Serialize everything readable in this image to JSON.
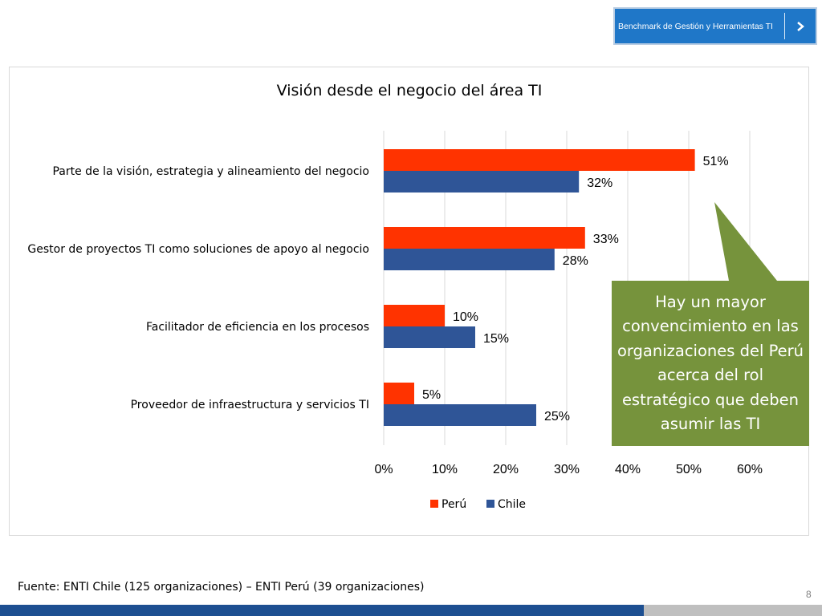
{
  "header": {
    "nav_button_label": "Benchmark de Gestión y Herramientas TI"
  },
  "colors": {
    "peru": "#ff3300",
    "chile": "#2f5597",
    "callout": "#76933c",
    "nav_bg": "#1f77c8",
    "bottom_bar": "#1d4f91"
  },
  "chart_data": {
    "type": "bar",
    "orientation": "horizontal",
    "title": "Visión desde el negocio del área TI",
    "categories": [
      "Parte de la visión, estrategia y alineamiento del negocio",
      "Gestor de proyectos  TI como soluciones de apoyo al negocio",
      "Facilitador de eficiencia en los procesos",
      "Proveedor de infraestructura y servicios TI"
    ],
    "series": [
      {
        "name": "Perú",
        "color": "#ff3300",
        "values": [
          51,
          33,
          10,
          5
        ],
        "labels": [
          "51%",
          "33%",
          "10%",
          "5%"
        ]
      },
      {
        "name": "Chile",
        "color": "#2f5597",
        "values": [
          32,
          28,
          15,
          25
        ],
        "labels": [
          "32%",
          "28%",
          "15%",
          "25%"
        ]
      }
    ],
    "xlim": [
      0,
      60
    ],
    "x_ticks": [
      "0%",
      "10%",
      "20%",
      "30%",
      "40%",
      "50%",
      "60%"
    ],
    "grid": true,
    "legend_position": "bottom"
  },
  "callout": {
    "text": "Hay un mayor convencimiento en las organizaciones del Perú acerca del rol estratégico que deben asumir las TI"
  },
  "footer": {
    "source": "Fuente: ENTI Chile (125 organizaciones) – ENTI Perú (39 organizaciones)",
    "page_number": "8"
  }
}
